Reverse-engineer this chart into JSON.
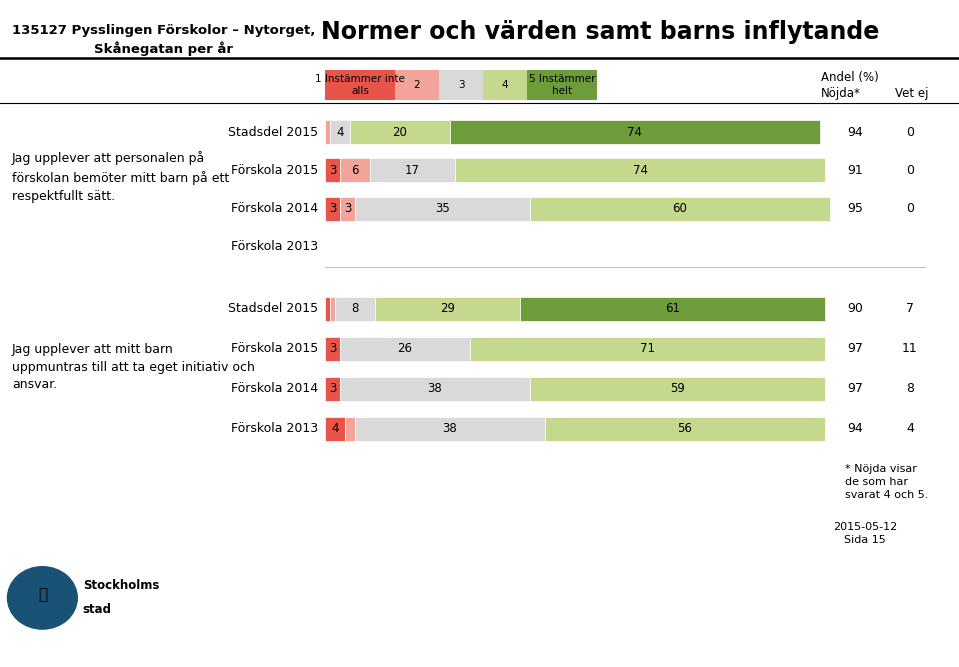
{
  "title": "Normer och värden samt barns inflytande",
  "subtitle_left": "135127 Pysslingen Förskolor – Nytorget,\nSkånegatan per år",
  "question1_label": "Jag upplever att personalen på\nförskolan bemöter mitt barn på ett\nrespektfullt sätt.",
  "question2_label": "Jag upplever att mitt barn\nuppmuntras till att ta eget initiativ och\nansvar.",
  "legend_labels": [
    "1 Instämmer inte\nalls",
    "2",
    "3",
    "4",
    "5 Instämmer\nhelt"
  ],
  "legend_colors": [
    "#e8534a",
    "#f2a49a",
    "#d9d9d9",
    "#c5d98e",
    "#6e9c3a"
  ],
  "andel_label": "Andel (%)",
  "nojda_label": "Nöjda*",
  "vetej_label": "Vet ej",
  "bars_q1": [
    {
      "label": "Stadsdel 2015",
      "v1": 0,
      "v2": 1,
      "v3": 4,
      "v4": 20,
      "v5": 74,
      "nojda": 94,
      "vetej": 0
    },
    {
      "label": "Förskola 2015",
      "v1": 3,
      "v2": 6,
      "v3": 17,
      "v4": 74,
      "v5": 0,
      "nojda": 91,
      "vetej": 0
    },
    {
      "label": "Förskola 2014",
      "v1": 3,
      "v2": 3,
      "v3": 35,
      "v4": 60,
      "v5": 0,
      "nojda": 95,
      "vetej": 0
    },
    {
      "label": "Förskola 2013",
      "v1": 0,
      "v2": 0,
      "v3": 0,
      "v4": 0,
      "v5": 0,
      "nojda": null,
      "vetej": null
    }
  ],
  "bars_q2": [
    {
      "label": "Stadsdel 2015",
      "v1": 1,
      "v2": 1,
      "v3": 8,
      "v4": 29,
      "v5": 61,
      "nojda": 90,
      "vetej": 7
    },
    {
      "label": "Förskola 2015",
      "v1": 3,
      "v2": 0,
      "v3": 26,
      "v4": 71,
      "v5": 0,
      "nojda": 97,
      "vetej": 11
    },
    {
      "label": "Förskola 2014",
      "v1": 3,
      "v2": 0,
      "v3": 38,
      "v4": 59,
      "v5": 0,
      "nojda": 97,
      "vetej": 8
    },
    {
      "label": "Förskola 2013",
      "v1": 4,
      "v2": 2,
      "v3": 38,
      "v4": 56,
      "v5": 0,
      "nojda": 94,
      "vetej": 4
    }
  ],
  "colors": {
    "v1": "#e8534a",
    "v2": "#f2a49a",
    "v3": "#d9d9d9",
    "v4": "#c5d98e",
    "v5": "#6e9c3a"
  },
  "footnote": "* Nöjda visar\nde som har\nsvarat 4 och 5.",
  "date_label": "2015-05-12\nSida 15",
  "background_color": "#ffffff"
}
